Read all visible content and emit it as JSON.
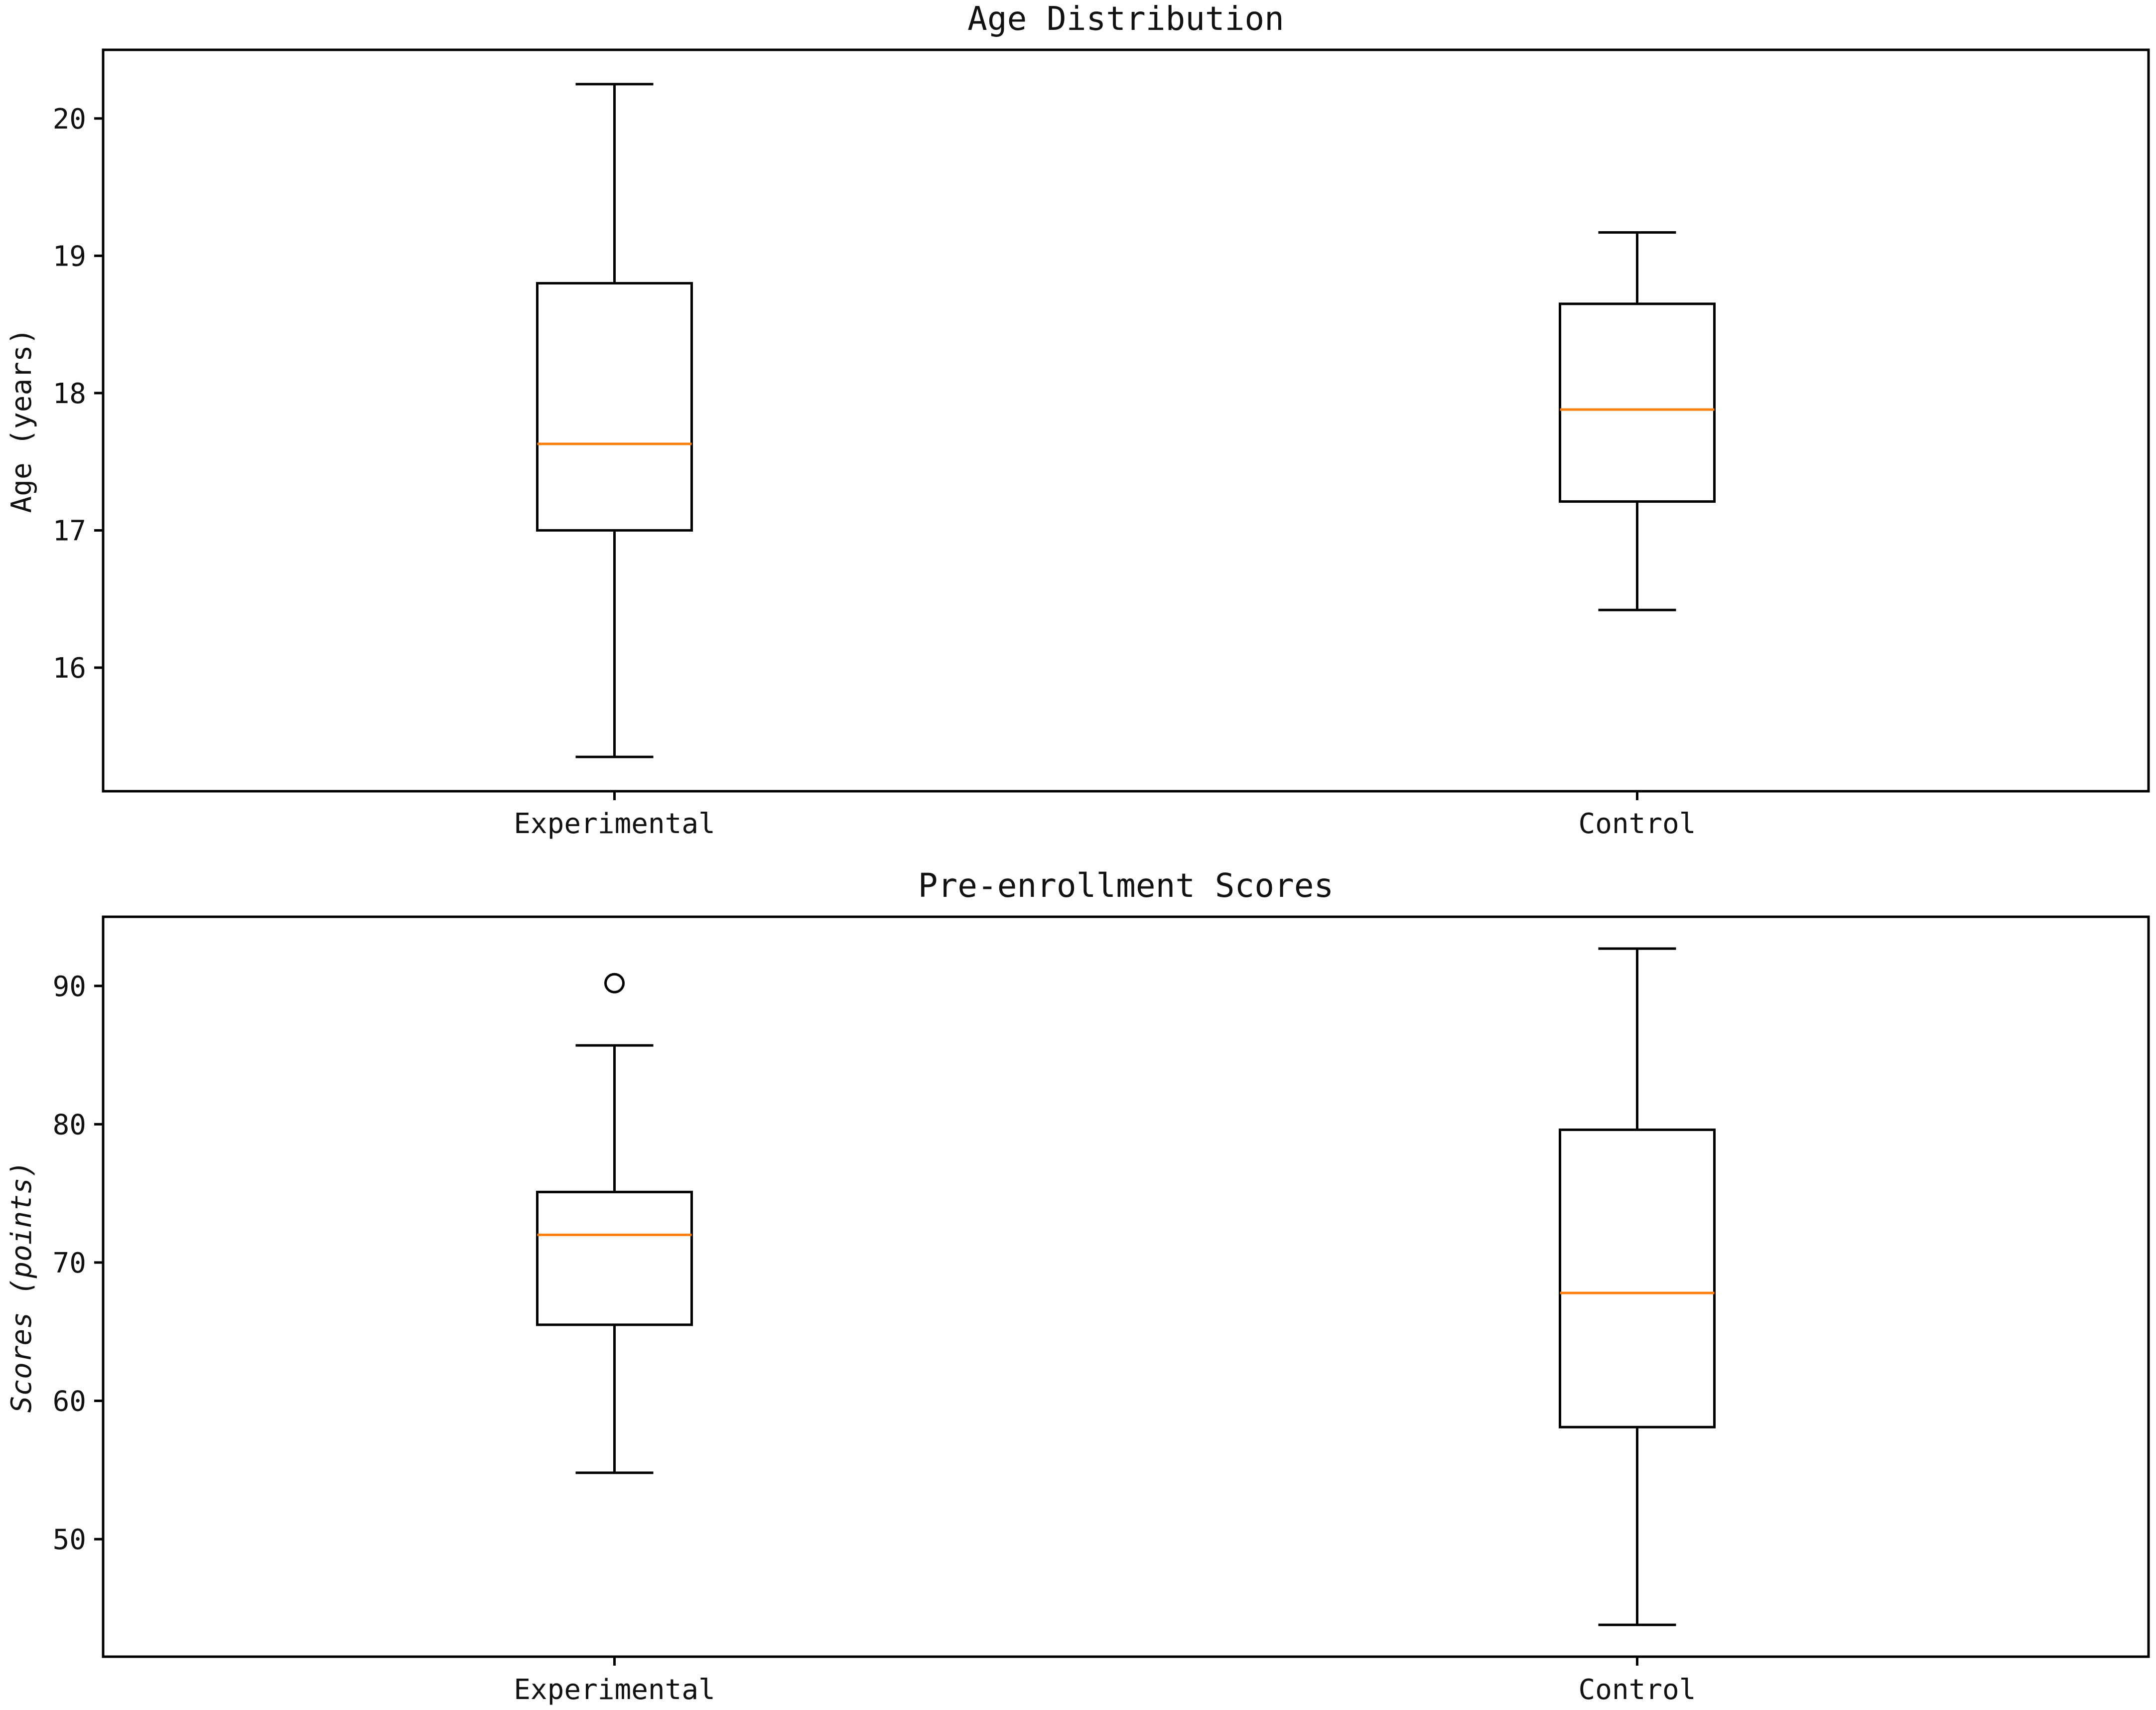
{
  "chart_data": [
    {
      "type": "box",
      "title": "Age Distribution",
      "xlabel": "",
      "ylabel": "Age (years)",
      "ylim": [
        15.1,
        20.5
      ],
      "yticks": [
        16,
        17,
        18,
        19,
        20
      ],
      "categories": [
        "Experimental",
        "Control"
      ],
      "boxes": [
        {
          "whisker_low": 15.35,
          "q1": 17.0,
          "median": 17.63,
          "q3": 18.8,
          "whisker_high": 20.25,
          "outliers": []
        },
        {
          "whisker_low": 16.42,
          "q1": 17.21,
          "median": 17.88,
          "q3": 18.65,
          "whisker_high": 19.17,
          "outliers": []
        }
      ],
      "colors": {
        "box": "#000000",
        "median": "#ff7f0e"
      }
    },
    {
      "type": "box",
      "title": "Pre-enrollment Scores",
      "xlabel": "",
      "ylabel": "Scores (points)",
      "ylim": [
        41.5,
        95.0
      ],
      "yticks": [
        50,
        60,
        70,
        80,
        90
      ],
      "categories": [
        "Experimental",
        "Control"
      ],
      "boxes": [
        {
          "whisker_low": 54.8,
          "q1": 65.5,
          "median": 72.0,
          "q3": 75.1,
          "whisker_high": 85.7,
          "outliers": [
            90.2
          ]
        },
        {
          "whisker_low": 43.8,
          "q1": 58.1,
          "median": 67.8,
          "q3": 79.6,
          "whisker_high": 92.7,
          "outliers": []
        }
      ],
      "colors": {
        "box": "#000000",
        "median": "#ff7f0e"
      }
    }
  ]
}
